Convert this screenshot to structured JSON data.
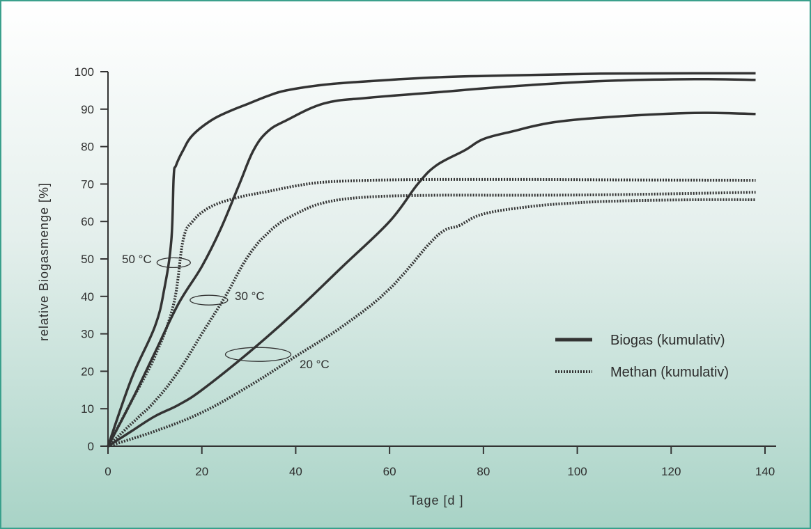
{
  "chart_data": {
    "type": "line",
    "xlabel": "Tage [d ]",
    "ylabel": "relative Biogasmenge [%]",
    "xlim": [
      0,
      140
    ],
    "ylim": [
      0,
      100
    ],
    "x_ticks": [
      0,
      20,
      40,
      60,
      80,
      100,
      120,
      140
    ],
    "y_ticks": [
      0,
      10,
      20,
      30,
      40,
      50,
      60,
      70,
      80,
      90,
      100
    ],
    "grid": false,
    "legend_position": "right",
    "legend": [
      {
        "label": "Biogas (kumulativ)",
        "style": "solid"
      },
      {
        "label": "Methan (kumulativ)",
        "style": "dotted"
      }
    ],
    "annotations": [
      {
        "text": "50 °C",
        "x": 14,
        "y": 49
      },
      {
        "text": "30 °C",
        "x": 21.5,
        "y": 39
      },
      {
        "text": "20 °C",
        "x": 32,
        "y": 24.5
      }
    ],
    "series": [
      {
        "group": "Biogas (kumulativ)",
        "temperature": "50 °C",
        "style": "solid",
        "x": [
          0,
          5,
          10,
          12,
          13.5,
          14,
          14.5,
          16,
          18,
          22,
          26,
          30,
          34,
          38,
          46,
          56,
          70,
          85,
          105,
          125,
          138
        ],
        "y": [
          0,
          18,
          32,
          42,
          55,
          72,
          75,
          79,
          83,
          87,
          89.5,
          91.5,
          93.5,
          95,
          96.5,
          97.5,
          98.5,
          99,
          99.5,
          99.6,
          99.6
        ]
      },
      {
        "group": "Biogas (kumulativ)",
        "temperature": "30 °C",
        "style": "solid",
        "x": [
          0,
          5,
          10,
          15,
          20,
          24,
          28,
          31,
          34,
          38,
          46,
          55,
          70,
          85,
          105,
          125,
          138
        ],
        "y": [
          0,
          12,
          25,
          38,
          48,
          58,
          70,
          79,
          84,
          87,
          91.5,
          93,
          94.5,
          96,
          97.5,
          98,
          97.8
        ]
      },
      {
        "group": "Biogas (kumulativ)",
        "temperature": "20 °C",
        "style": "solid",
        "x": [
          0,
          5,
          10,
          15,
          20,
          30,
          40,
          50,
          60,
          66,
          70,
          76,
          80,
          86,
          95,
          108,
          125,
          138
        ],
        "y": [
          0,
          4,
          8,
          11,
          15,
          25,
          36,
          48,
          60,
          70,
          75,
          79,
          82,
          84,
          86.5,
          88,
          89,
          88.7
        ]
      },
      {
        "group": "Methan (kumulativ)",
        "temperature": "50 °C",
        "style": "dotted",
        "x": [
          0,
          5,
          10,
          14,
          16,
          18,
          22,
          28,
          34,
          40,
          46,
          56,
          70,
          90,
          110,
          138
        ],
        "y": [
          0,
          12,
          24,
          38,
          55,
          60,
          64,
          66.5,
          68,
          69.5,
          70.5,
          71,
          71.2,
          71.2,
          71.1,
          71
        ]
      },
      {
        "group": "Methan (kumulativ)",
        "temperature": "30 °C",
        "style": "dotted",
        "x": [
          0,
          5,
          10,
          15,
          20,
          25,
          30,
          35,
          40,
          46,
          55,
          70,
          90,
          110,
          138
        ],
        "y": [
          0,
          6,
          12,
          20,
          30,
          40,
          51,
          58,
          62,
          65,
          66.5,
          67,
          67,
          67.2,
          67.8
        ]
      },
      {
        "group": "Methan (kumulativ)",
        "temperature": "20 °C",
        "style": "dotted",
        "x": [
          0,
          10,
          20,
          30,
          40,
          50,
          60,
          70,
          75,
          80,
          90,
          100,
          110,
          125,
          138
        ],
        "y": [
          0,
          4,
          9,
          16,
          24,
          32,
          42,
          56,
          59,
          62,
          64,
          65,
          65.5,
          65.8,
          65.8
        ]
      }
    ]
  }
}
